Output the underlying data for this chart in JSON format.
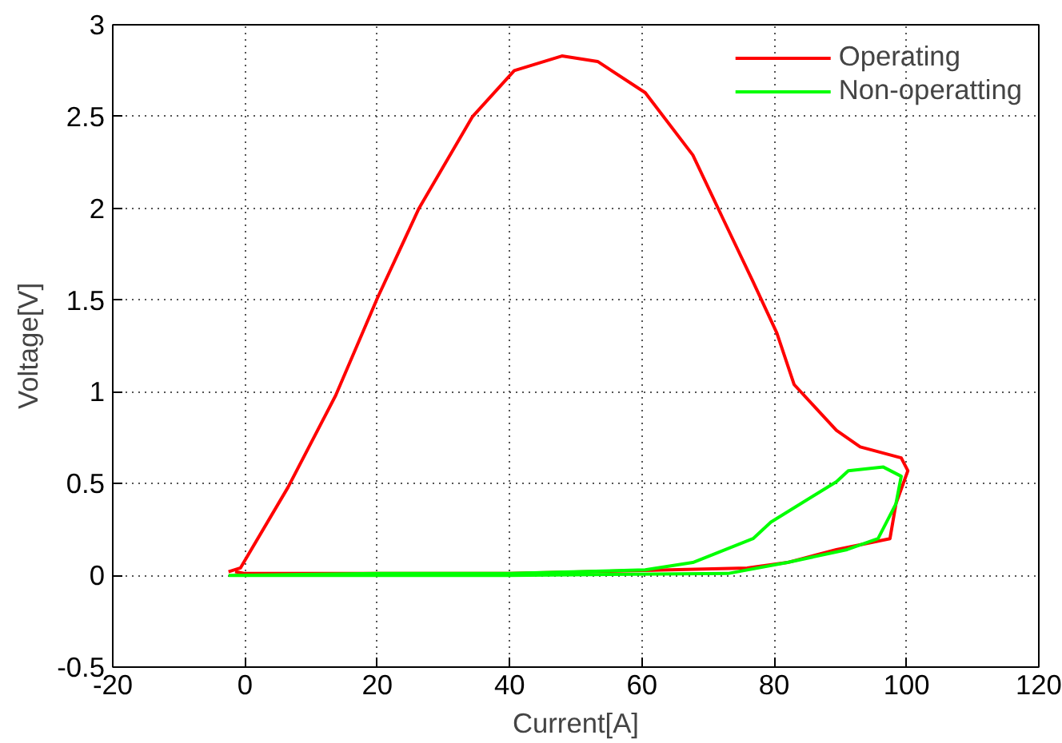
{
  "chart_data": {
    "type": "line",
    "xlabel": "Current[A]",
    "ylabel": "Voltage[V]",
    "xlim": [
      -20,
      120
    ],
    "xticks": [
      -20,
      0,
      20,
      40,
      60,
      80,
      100,
      120
    ],
    "ylim": [
      -0.5,
      3
    ],
    "yticks": [
      -0.5,
      0,
      0.5,
      1,
      1.5,
      2,
      2.5,
      3
    ],
    "grid": true,
    "legend": "top right",
    "line_style": "solid",
    "series": [
      {
        "name": "Operating",
        "color": "#ff0000",
        "x": [
          -2.5,
          -0.7,
          6.5,
          13.7,
          20,
          26.3,
          34.4,
          40.7,
          47.9,
          53.3,
          60.5,
          67.7,
          72.3,
          76.8,
          80.4,
          83,
          89.4,
          93,
          99.2,
          100.2,
          98.4,
          97.5,
          89.4,
          82,
          75.9,
          40,
          0,
          -1.5
        ],
        "values": [
          0.02,
          0.04,
          0.48,
          0.98,
          1.51,
          2.0,
          2.5,
          2.75,
          2.83,
          2.8,
          2.63,
          2.29,
          1.94,
          1.6,
          1.32,
          1.04,
          0.79,
          0.7,
          0.64,
          0.57,
          0.39,
          0.2,
          0.14,
          0.07,
          0.04,
          0.01,
          0.01,
          0.02
        ]
      },
      {
        "name": "Non-operatting",
        "color": "#00ff00",
        "x": [
          -2.5,
          20,
          40,
          60.5,
          67.7,
          76.8,
          79.5,
          89.4,
          91.2,
          96.5,
          99.2,
          98.4,
          95.7,
          91,
          82,
          73,
          40,
          0,
          -1.5
        ],
        "values": [
          0.0,
          0.01,
          0.01,
          0.03,
          0.07,
          0.2,
          0.29,
          0.51,
          0.57,
          0.59,
          0.54,
          0.39,
          0.2,
          0.14,
          0.07,
          0.01,
          0.0,
          0.0,
          0.0
        ]
      }
    ]
  }
}
